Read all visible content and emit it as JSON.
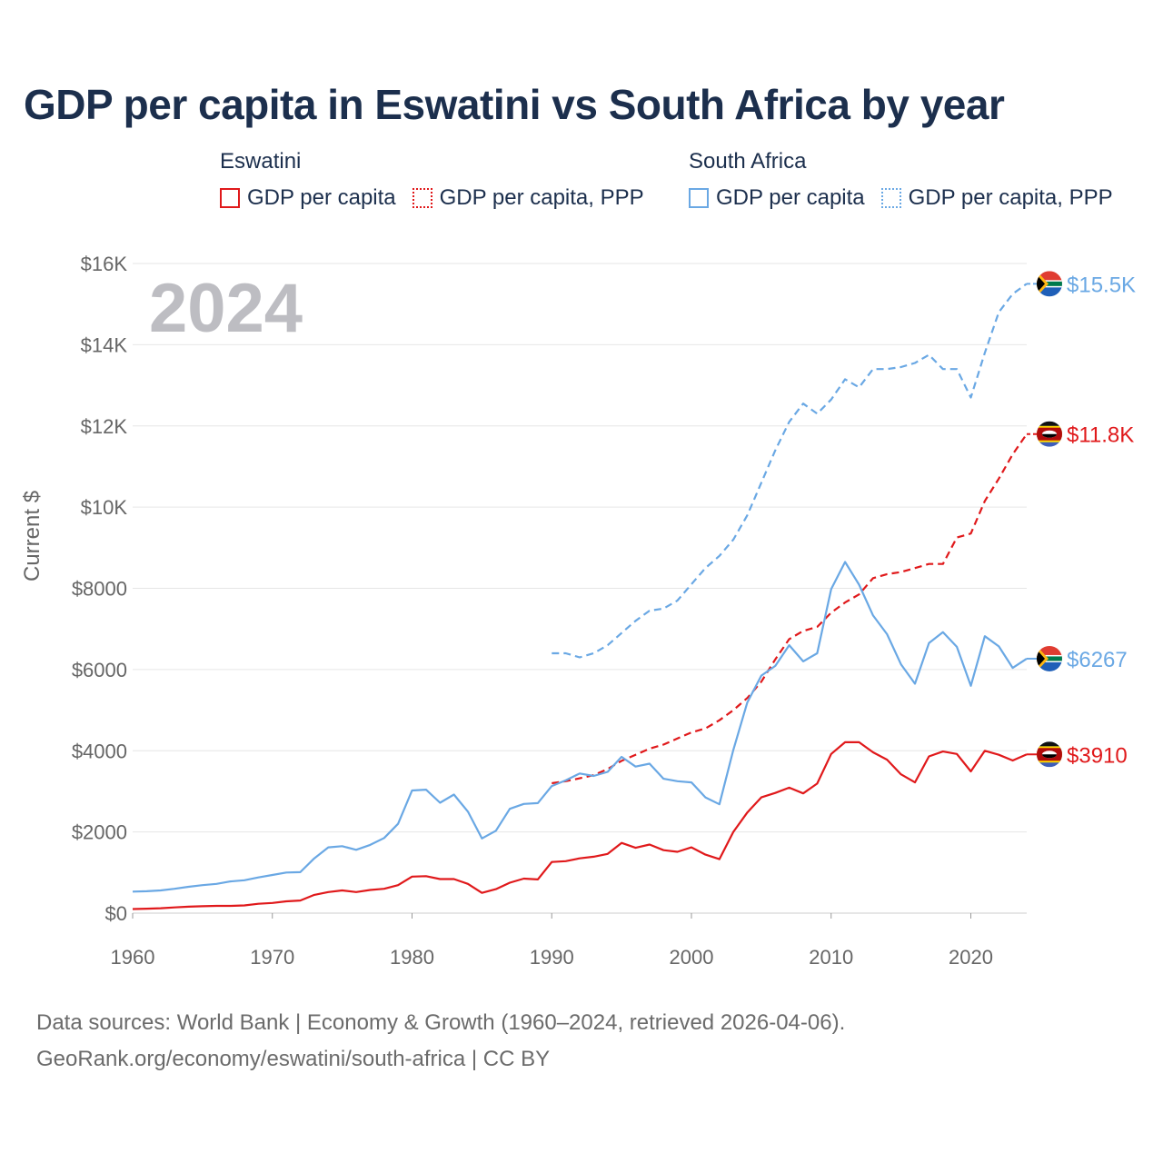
{
  "title": "GDP per capita in Eswatini vs South Africa by year",
  "legend": {
    "groups": [
      {
        "name": "Eswatini",
        "items": [
          {
            "label": "GDP per capita",
            "style": "solid",
            "color": "#e0191b"
          },
          {
            "label": "GDP per capita, PPP",
            "style": "dotted",
            "color": "#e0191b"
          }
        ]
      },
      {
        "name": "South Africa",
        "items": [
          {
            "label": "GDP per capita",
            "style": "solid",
            "color": "#6aa8e4"
          },
          {
            "label": "GDP per capita, PPP",
            "style": "dotted",
            "color": "#6aa8e4"
          }
        ]
      }
    ]
  },
  "year_display": "2024",
  "footer": {
    "line1": "Data sources: World Bank | Economy & Growth (1960–2024, retrieved 2026-04-06).",
    "line2": "GeoRank.org/economy/eswatini/south-africa | CC BY"
  },
  "chart_data": {
    "type": "line",
    "title": "GDP per capita in Eswatini vs South Africa by year",
    "xlabel": "",
    "ylabel": "Current $",
    "xlim": [
      1960,
      2024
    ],
    "ylim": [
      0,
      16000
    ],
    "x_ticks": [
      1960,
      1970,
      1980,
      1990,
      2000,
      2010,
      2020
    ],
    "y_ticks": [
      0,
      2000,
      4000,
      6000,
      8000,
      10000,
      12000,
      14000,
      16000
    ],
    "y_tick_labels": [
      "$0",
      "$2000",
      "$4000",
      "$6000",
      "$8000",
      "$10K",
      "$12K",
      "$14K",
      "$16K"
    ],
    "grid": true,
    "series": [
      {
        "name": "South Africa GDP per capita, PPP",
        "color": "#6aa8e4",
        "dash": "dashed",
        "end_label": "$15.5K",
        "x": [
          1990,
          1991,
          1992,
          1993,
          1994,
          1995,
          1996,
          1997,
          1998,
          1999,
          2000,
          2001,
          2002,
          2003,
          2004,
          2005,
          2006,
          2007,
          2008,
          2009,
          2010,
          2011,
          2012,
          2013,
          2014,
          2015,
          2016,
          2017,
          2018,
          2019,
          2020,
          2021,
          2022,
          2023,
          2024
        ],
        "values": [
          6400,
          6400,
          6300,
          6400,
          6600,
          6900,
          7200,
          7450,
          7500,
          7700,
          8100,
          8500,
          8800,
          9200,
          9800,
          10600,
          11400,
          12100,
          12550,
          12300,
          12650,
          13150,
          12950,
          13400,
          13400,
          13450,
          13550,
          13750,
          13400,
          13400,
          12700,
          13800,
          14800,
          15250,
          15500
        ]
      },
      {
        "name": "Eswatini GDP per capita, PPP",
        "color": "#e0191b",
        "dash": "dashed",
        "end_label": "$11.8K",
        "x": [
          1990,
          1991,
          1992,
          1993,
          1994,
          1995,
          1996,
          1997,
          1998,
          1999,
          2000,
          2001,
          2002,
          2003,
          2004,
          2005,
          2006,
          2007,
          2008,
          2009,
          2010,
          2011,
          2012,
          2013,
          2014,
          2015,
          2016,
          2017,
          2018,
          2019,
          2020,
          2021,
          2022,
          2023,
          2024
        ],
        "values": [
          3200,
          3250,
          3320,
          3400,
          3550,
          3750,
          3900,
          4050,
          4150,
          4300,
          4450,
          4550,
          4750,
          5000,
          5300,
          5700,
          6250,
          6750,
          6950,
          7050,
          7400,
          7650,
          7850,
          8250,
          8350,
          8400,
          8500,
          8600,
          8600,
          9250,
          9350,
          10150,
          10700,
          11300,
          11800
        ]
      },
      {
        "name": "South Africa GDP per capita",
        "color": "#6aa8e4",
        "dash": "solid",
        "end_label": "$6267",
        "x": [
          1960,
          1961,
          1962,
          1963,
          1964,
          1965,
          1966,
          1967,
          1968,
          1969,
          1970,
          1971,
          1972,
          1973,
          1974,
          1975,
          1976,
          1977,
          1978,
          1979,
          1980,
          1981,
          1982,
          1983,
          1984,
          1985,
          1986,
          1987,
          1988,
          1989,
          1990,
          1991,
          1992,
          1993,
          1994,
          1995,
          1996,
          1997,
          1998,
          1999,
          2000,
          2001,
          2002,
          2003,
          2004,
          2005,
          2006,
          2007,
          2008,
          2009,
          2010,
          2011,
          2012,
          2013,
          2014,
          2015,
          2016,
          2017,
          2018,
          2019,
          2020,
          2021,
          2022,
          2023,
          2024
        ],
        "values": [
          530,
          540,
          560,
          600,
          650,
          690,
          720,
          780,
          810,
          880,
          940,
          1000,
          1010,
          1350,
          1620,
          1650,
          1560,
          1680,
          1850,
          2200,
          3020,
          3040,
          2720,
          2920,
          2500,
          1840,
          2030,
          2570,
          2690,
          2710,
          3130,
          3270,
          3440,
          3380,
          3480,
          3850,
          3610,
          3680,
          3310,
          3250,
          3220,
          2850,
          2680,
          4020,
          5190,
          5850,
          6090,
          6600,
          6200,
          6400,
          7980,
          8650,
          8090,
          7330,
          6870,
          6130,
          5650,
          6650,
          6920,
          6560,
          5600,
          6820,
          6570,
          6040,
          6267
        ]
      },
      {
        "name": "Eswatini GDP per capita",
        "color": "#e0191b",
        "dash": "solid",
        "end_label": "$3910",
        "x": [
          1960,
          1961,
          1962,
          1963,
          1964,
          1965,
          1966,
          1967,
          1968,
          1969,
          1970,
          1971,
          1972,
          1973,
          1974,
          1975,
          1976,
          1977,
          1978,
          1979,
          1980,
          1981,
          1982,
          1983,
          1984,
          1985,
          1986,
          1987,
          1988,
          1989,
          1990,
          1991,
          1992,
          1993,
          1994,
          1995,
          1996,
          1997,
          1998,
          1999,
          2000,
          2001,
          2002,
          2003,
          2004,
          2005,
          2006,
          2007,
          2008,
          2009,
          2010,
          2011,
          2012,
          2013,
          2014,
          2015,
          2016,
          2017,
          2018,
          2019,
          2020,
          2021,
          2022,
          2023,
          2024
        ],
        "values": [
          100,
          110,
          120,
          140,
          160,
          170,
          180,
          180,
          190,
          230,
          250,
          290,
          310,
          450,
          520,
          560,
          520,
          570,
          600,
          690,
          900,
          910,
          840,
          840,
          720,
          500,
          590,
          750,
          850,
          830,
          1260,
          1280,
          1350,
          1390,
          1460,
          1730,
          1610,
          1690,
          1550,
          1510,
          1620,
          1440,
          1330,
          2000,
          2480,
          2850,
          2960,
          3090,
          2950,
          3190,
          3920,
          4210,
          4210,
          3960,
          3780,
          3420,
          3220,
          3860,
          3980,
          3920,
          3490,
          4000,
          3900,
          3760,
          3910
        ]
      }
    ]
  }
}
